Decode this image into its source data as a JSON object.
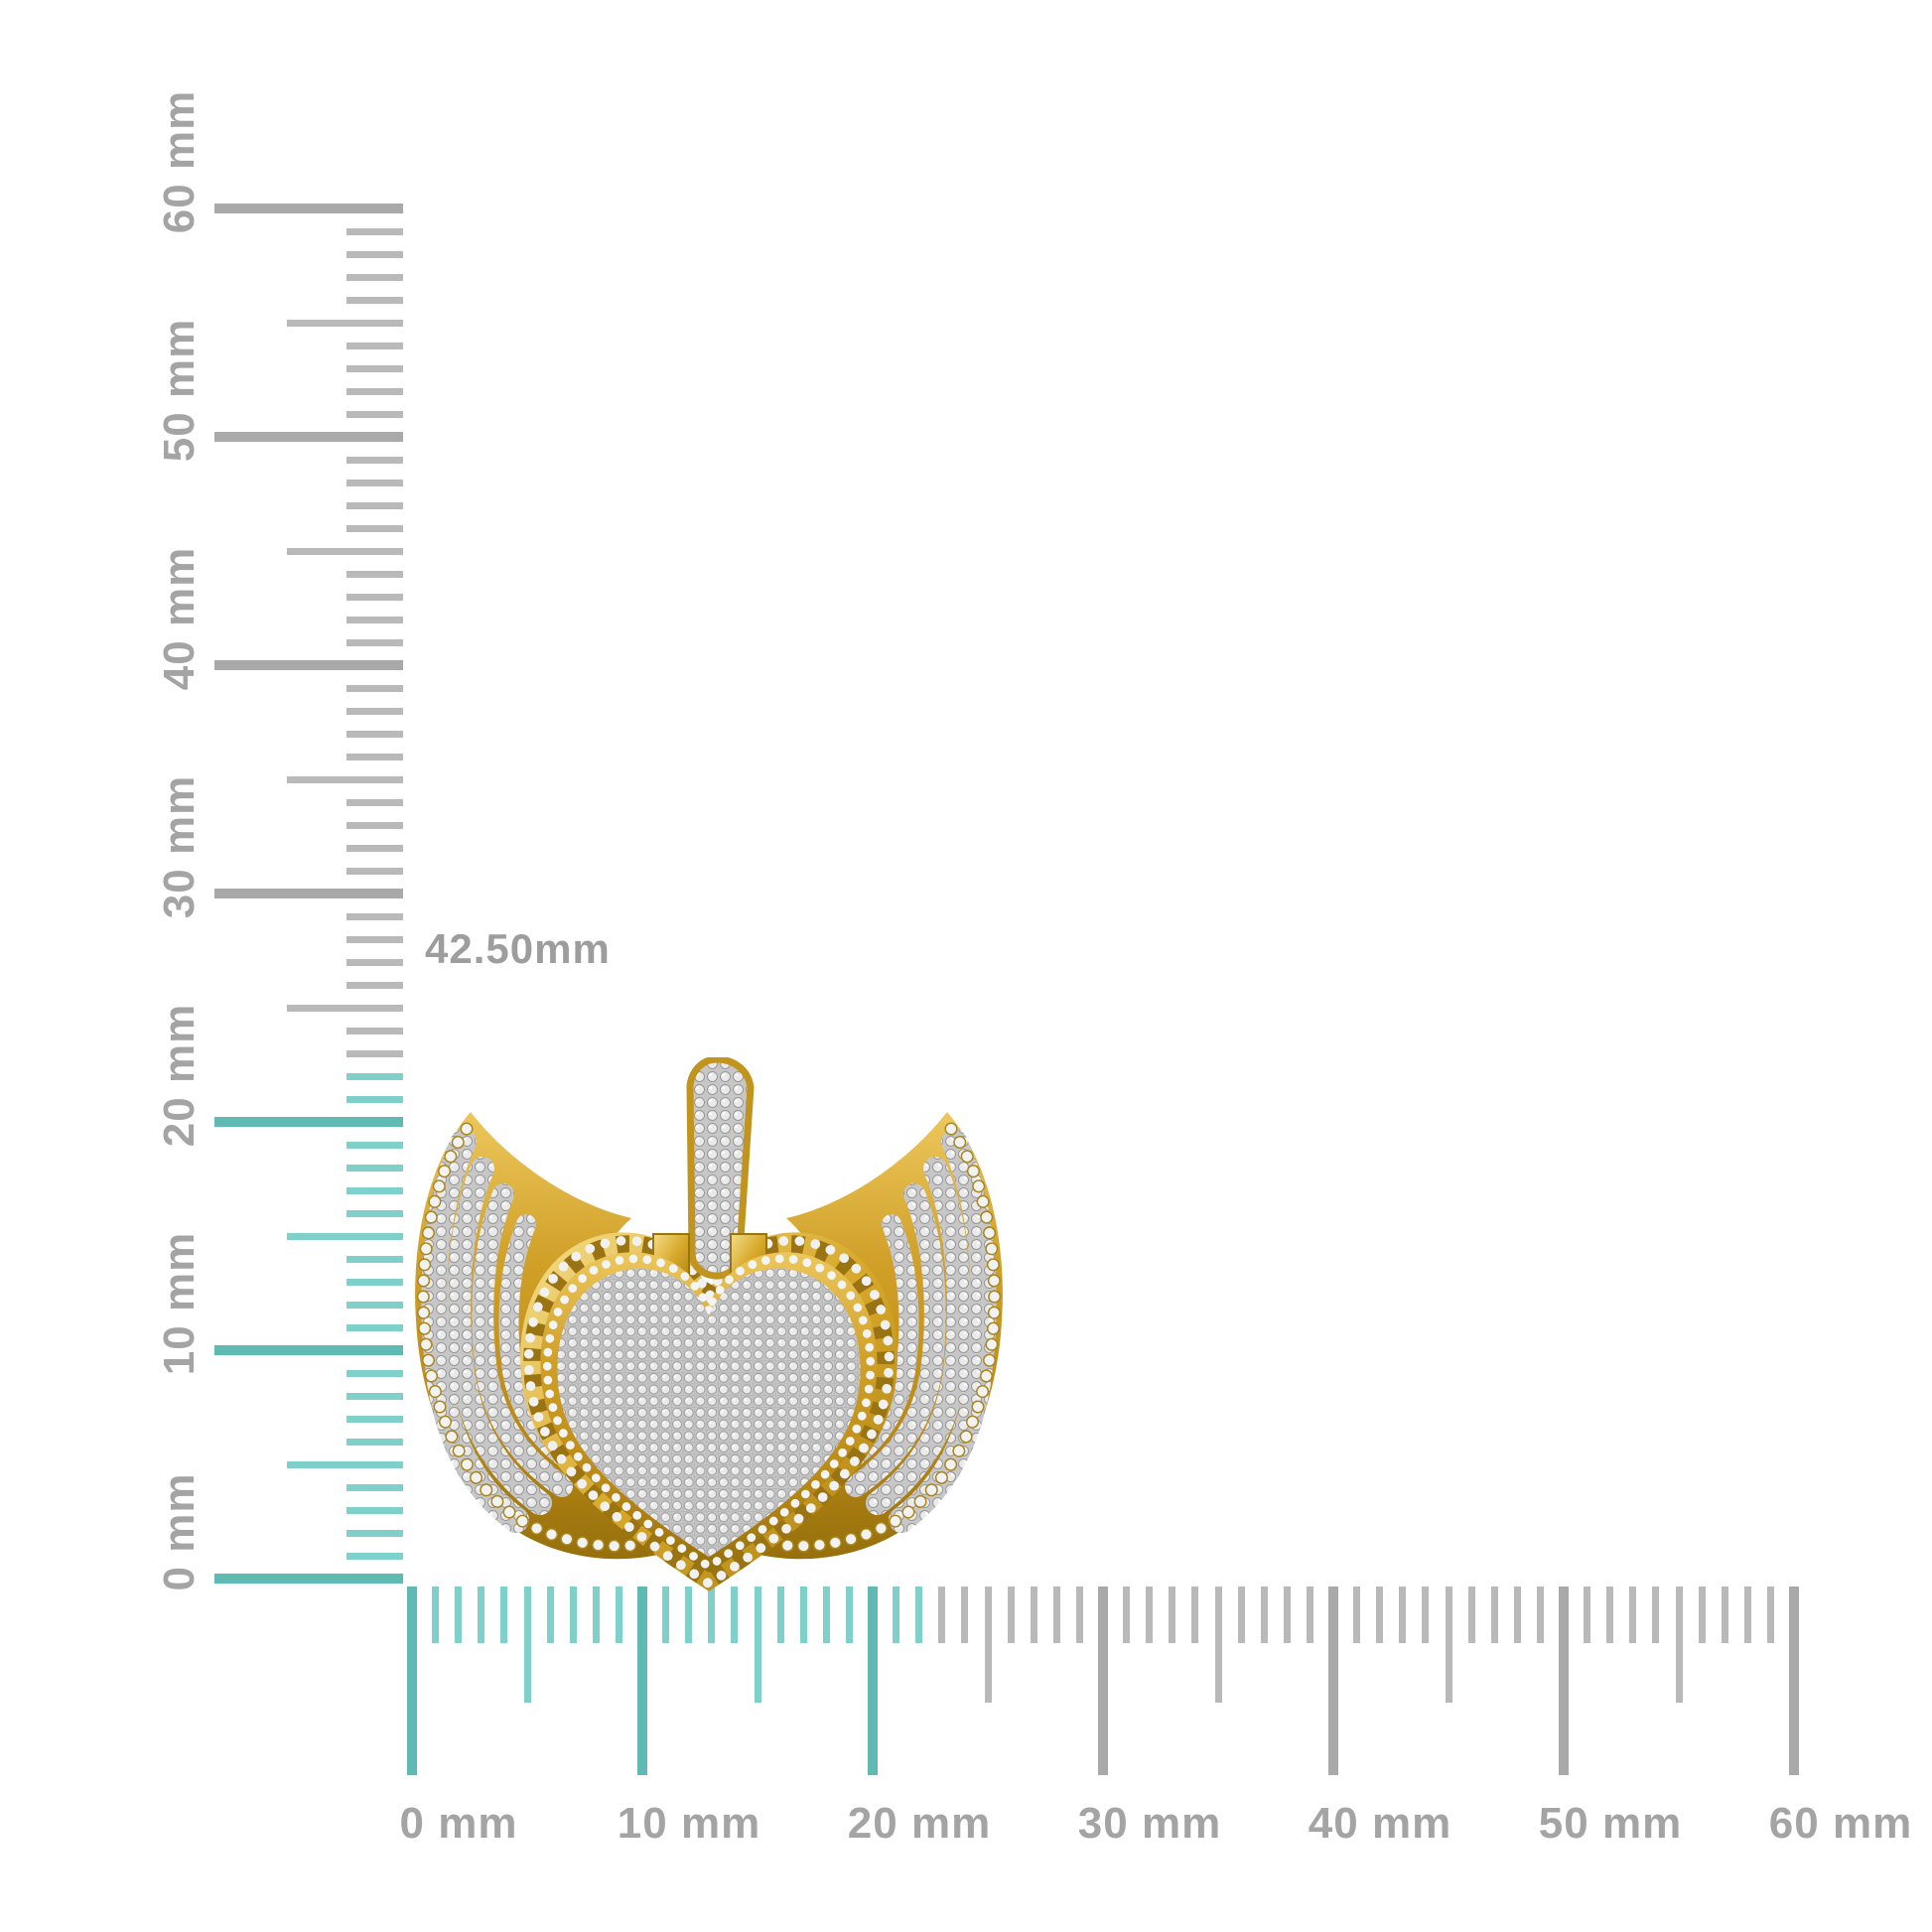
{
  "image_type": "jewelry product photo with millimeter measurement rulers",
  "dimension_label": "42.50mm",
  "pendant": {
    "description": "gold winged heart pendant fully set with pave diamonds",
    "gold_color": "#c8991f",
    "diamond_color": "#e9e9e9"
  },
  "rulers": {
    "vertical": {
      "unit_labels": [
        "0 mm",
        "10 mm",
        "20 mm",
        "30 mm",
        "40 mm",
        "50 mm",
        "60 mm"
      ],
      "min_mm": 0,
      "max_mm": 60,
      "minor_step_mm": 1,
      "mid_step_mm": 5,
      "major_step_mm": 10,
      "highlight_until_mm": 22
    },
    "horizontal": {
      "unit_labels": [
        "0 mm",
        "10 mm",
        "20 mm",
        "30 mm",
        "40 mm",
        "50 mm",
        "60 mm"
      ],
      "min_mm": 0,
      "max_mm": 60,
      "minor_step_mm": 1,
      "mid_step_mm": 5,
      "major_step_mm": 10,
      "highlight_until_mm": 22
    },
    "colors": {
      "highlight_minor": "#7fd0ca",
      "highlight_major": "#5ebab2",
      "gray_minor": "#b9b9b9",
      "gray_major": "#a9a9a9",
      "label": "#a4a4a4",
      "dimension_text": "#9d9d9d"
    }
  }
}
